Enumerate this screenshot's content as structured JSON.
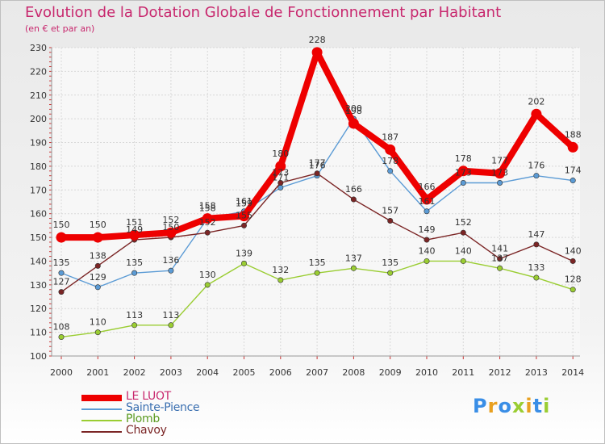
{
  "title": "Evolution de la Dotation Globale de Fonctionnement par Habitant",
  "subtitle": "(en € et par an)",
  "logo": "Proxiti",
  "chart_data": {
    "type": "line",
    "title": "Evolution de la Dotation Globale de Fonctionnement par Habitant",
    "subtitle": "(en € et par an)",
    "x": [
      "2000",
      "2001",
      "2002",
      "2003",
      "2004",
      "2005",
      "2006",
      "2007",
      "2008",
      "2009",
      "2010",
      "2011",
      "2012",
      "2013",
      "2014"
    ],
    "ylim": [
      100,
      230
    ],
    "yticks": [
      100,
      110,
      120,
      130,
      140,
      150,
      160,
      170,
      180,
      190,
      200,
      210,
      220,
      230
    ],
    "grid": true,
    "legend_position": "bottom-left",
    "series": [
      {
        "name": "LE LUOT",
        "color": "#ee0000",
        "values": [
          150,
          150,
          151,
          152,
          158,
          159,
          180,
          228,
          198,
          187,
          166,
          178,
          177,
          202,
          188
        ]
      },
      {
        "name": "Sainte-Pience",
        "color": "#5b9bd5",
        "values": [
          135,
          129,
          135,
          136,
          158,
          161,
          171,
          176,
          200,
          178,
          161,
          173,
          173,
          176,
          174
        ]
      },
      {
        "name": "Plomb",
        "color": "#9acd32",
        "values": [
          108,
          110,
          113,
          113,
          130,
          139,
          132,
          135,
          137,
          135,
          140,
          140,
          137,
          133,
          128
        ]
      },
      {
        "name": "Chavoy",
        "color": "#7b2525",
        "values": [
          127,
          138,
          149,
          150,
          152,
          155,
          173,
          177,
          166,
          157,
          149,
          152,
          141,
          147,
          140
        ]
      }
    ]
  }
}
